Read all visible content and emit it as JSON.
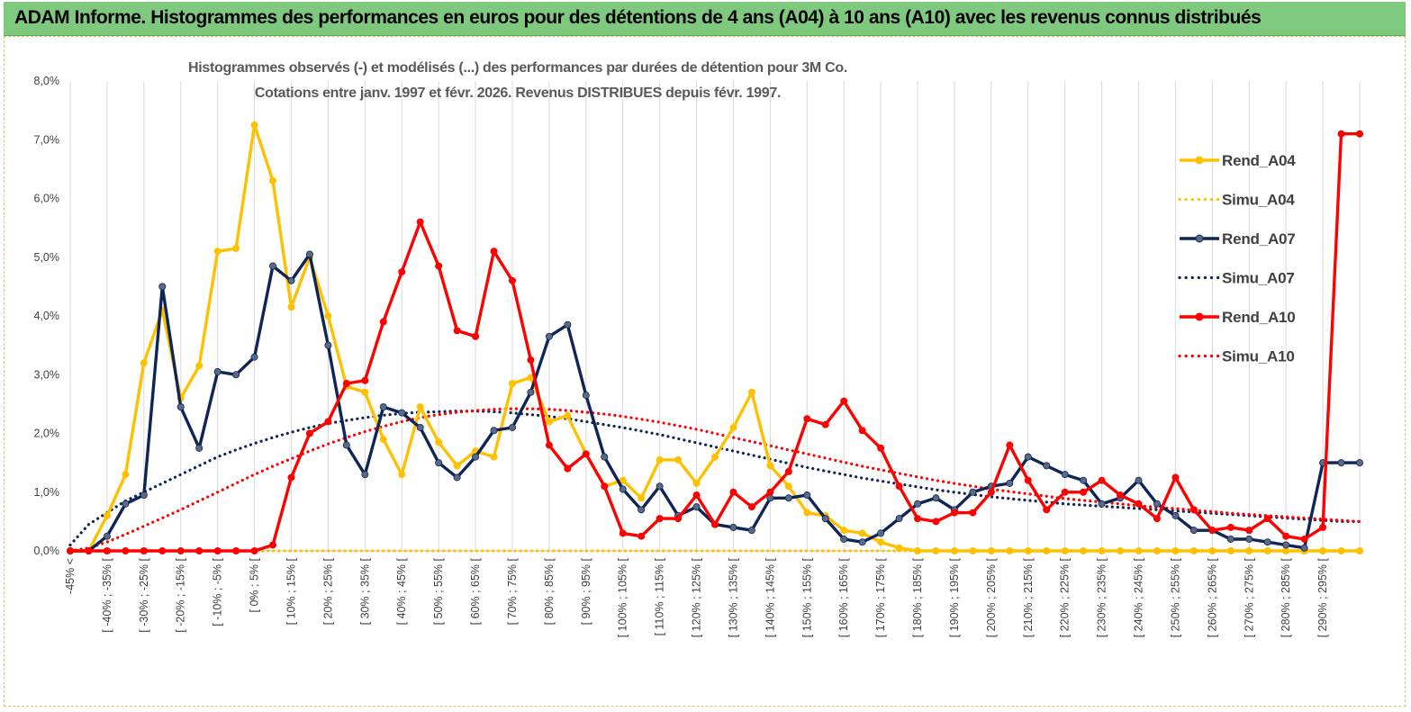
{
  "banner": {
    "title": "ADAM Informe. Histogrammes des performances en euros pour des détentions de 4 ans (A04) à 10 ans (A10) avec les revenus connus distribués"
  },
  "chart_data": {
    "type": "line",
    "title_lines": [
      "Histogrammes observés (-) et modélisés (...) des performances par durées de détention pour 3M Co.",
      "Cotations entre janv. 1997 et févr. 2026. Revenus DISTRIBUES depuis févr. 1997."
    ],
    "xlabel": "",
    "ylabel": "",
    "ylim": [
      0,
      8
    ],
    "y_ticks": [
      "0,0%",
      "1,0%",
      "2,0%",
      "3,0%",
      "4,0%",
      "5,0%",
      "6,0%",
      "7,0%",
      "8,0%"
    ],
    "y_unit": "%",
    "grid": "vertical",
    "legend_position": "right",
    "x_tick_labels": [
      "-45% <",
      "[ -40% ; -35% [",
      "[ -30% ; -25% [",
      "[ -20% ; -15% [",
      "[ -10% ; -5% [",
      "[ 0% ; 5% [",
      "[ 10% ; 15% [",
      "[ 20% ; 25% [",
      "[ 30% ; 35% [",
      "[ 40% ; 45% [",
      "[ 50% ; 55% [",
      "[ 60% ; 65% [",
      "[ 70% ; 75% [",
      "[ 80% ; 85% [",
      "[ 90% ; 95% [",
      "[ 100% ; 105% [",
      "[ 110% ; 115% [",
      "[ 120% ; 125% [",
      "[ 130% ; 135% [",
      "[ 140% ; 145% [",
      "[ 150% ; 155% [",
      "[ 160% ; 165% [",
      "[ 170% ; 175% [",
      "[ 180% ; 185% [",
      "[ 190% ; 195% [",
      "[ 200% ; 205% [",
      "[ 210% ; 215% [",
      "[ 220% ; 225% [",
      "[ 230% ; 235% [",
      "[ 240% ; 245% [",
      "[ 250% ; 255% [",
      "[ 260% ; 265% [",
      "[ 270% ; 275% [",
      "[ 280% ; 285% [",
      "[ 290% ; 295% ["
    ],
    "categories_count": 71,
    "series": [
      {
        "name": "Rend_A04",
        "color": "#ffc000",
        "style": "solid-markers",
        "values": [
          0,
          0,
          0.6,
          1.3,
          3.2,
          4.1,
          2.6,
          3.15,
          5.1,
          5.15,
          7.25,
          6.3,
          4.15,
          5.0,
          4.0,
          2.8,
          2.7,
          1.9,
          1.3,
          2.45,
          1.85,
          1.45,
          1.7,
          1.6,
          2.85,
          2.95,
          2.2,
          2.3,
          1.65,
          1.1,
          1.2,
          0.9,
          1.55,
          1.55,
          1.15,
          1.6,
          2.1,
          2.7,
          1.45,
          1.1,
          0.65,
          0.6,
          0.35,
          0.3,
          0.15,
          0.05,
          0,
          0,
          0,
          0,
          0,
          0,
          0,
          0,
          0,
          0,
          0,
          0,
          0,
          0,
          0,
          0,
          0,
          0,
          0,
          0,
          0,
          0,
          0,
          0,
          0
        ]
      },
      {
        "name": "Simu_A04",
        "color": "#ffc000",
        "style": "dotted",
        "values": [
          0,
          0,
          0,
          0,
          0,
          0,
          0,
          0,
          0,
          0,
          0,
          0,
          0,
          0,
          0,
          0,
          0,
          0,
          0,
          0,
          0,
          0,
          0,
          0,
          0,
          0,
          0,
          0,
          0,
          0,
          0,
          0,
          0,
          0,
          0,
          0,
          0,
          0,
          0,
          0,
          0,
          0,
          0,
          0,
          0,
          0,
          0,
          0,
          0,
          0,
          0,
          0,
          0,
          0,
          0,
          0,
          0,
          0,
          0,
          0,
          0,
          0,
          0,
          0,
          0,
          0,
          0,
          0,
          0,
          0,
          0
        ]
      },
      {
        "name": "Rend_A07",
        "color": "#0f2557",
        "style": "solid-markers",
        "values": [
          0,
          0,
          0.25,
          0.8,
          0.95,
          4.5,
          2.45,
          1.75,
          3.05,
          3.0,
          3.3,
          4.85,
          4.6,
          5.05,
          3.5,
          1.8,
          1.3,
          2.45,
          2.35,
          2.1,
          1.5,
          1.25,
          1.6,
          2.05,
          2.1,
          2.7,
          3.65,
          3.85,
          2.65,
          1.6,
          1.05,
          0.7,
          1.1,
          0.6,
          0.75,
          0.45,
          0.4,
          0.35,
          0.9,
          0.9,
          0.95,
          0.55,
          0.2,
          0.15,
          0.3,
          0.55,
          0.8,
          0.9,
          0.7,
          1.0,
          1.1,
          1.15,
          1.6,
          1.45,
          1.3,
          1.2,
          0.8,
          0.9,
          1.2,
          0.8,
          0.6,
          0.35,
          0.35,
          0.2,
          0.2,
          0.15,
          0.1,
          0.05,
          1.5,
          1.5,
          1.5
        ]
      },
      {
        "name": "Simu_A07",
        "color": "#0f2557",
        "style": "dotted",
        "values": [
          0.1,
          0.45,
          0.65,
          0.85,
          1.0,
          1.15,
          1.3,
          1.45,
          1.6,
          1.72,
          1.83,
          1.93,
          2.02,
          2.1,
          2.17,
          2.22,
          2.27,
          2.31,
          2.34,
          2.36,
          2.37,
          2.38,
          2.38,
          2.37,
          2.35,
          2.32,
          2.29,
          2.25,
          2.2,
          2.15,
          2.1,
          2.04,
          1.98,
          1.91,
          1.84,
          1.77,
          1.7,
          1.63,
          1.56,
          1.49,
          1.42,
          1.36,
          1.3,
          1.24,
          1.19,
          1.14,
          1.09,
          1.04,
          1.0,
          0.96,
          0.92,
          0.89,
          0.86,
          0.83,
          0.8,
          0.78,
          0.76,
          0.74,
          0.72,
          0.7,
          0.68,
          0.66,
          0.64,
          0.62,
          0.6,
          0.58,
          0.56,
          0.54,
          0.52,
          0.5,
          0.5
        ]
      },
      {
        "name": "Rend_A10",
        "color": "#ff0000",
        "style": "solid-markers",
        "values": [
          0,
          0,
          0,
          0,
          0,
          0,
          0,
          0,
          0,
          0,
          0,
          0.1,
          1.25,
          2.0,
          2.2,
          2.85,
          2.9,
          3.9,
          4.75,
          5.6,
          4.85,
          3.75,
          3.65,
          5.1,
          4.6,
          3.25,
          1.8,
          1.4,
          1.65,
          1.1,
          0.3,
          0.25,
          0.55,
          0.55,
          0.95,
          0.45,
          1.0,
          0.75,
          1.0,
          1.35,
          2.25,
          2.15,
          2.55,
          2.05,
          1.75,
          1.1,
          0.55,
          0.5,
          0.65,
          0.65,
          1.0,
          1.8,
          1.2,
          0.7,
          1.0,
          1.0,
          1.2,
          0.95,
          0.8,
          0.55,
          1.25,
          0.7,
          0.35,
          0.4,
          0.35,
          0.55,
          0.25,
          0.2,
          0.4,
          7.1,
          7.1
        ]
      },
      {
        "name": "Simu_A10",
        "color": "#ff0000",
        "style": "dotted",
        "values": [
          0,
          0.05,
          0.15,
          0.28,
          0.42,
          0.56,
          0.7,
          0.85,
          1.0,
          1.15,
          1.3,
          1.44,
          1.57,
          1.7,
          1.82,
          1.93,
          2.03,
          2.12,
          2.2,
          2.27,
          2.32,
          2.36,
          2.39,
          2.41,
          2.42,
          2.42,
          2.41,
          2.39,
          2.36,
          2.33,
          2.29,
          2.24,
          2.19,
          2.13,
          2.07,
          2.0,
          1.93,
          1.86,
          1.79,
          1.72,
          1.65,
          1.58,
          1.51,
          1.44,
          1.38,
          1.32,
          1.26,
          1.2,
          1.15,
          1.1,
          1.05,
          1.01,
          0.97,
          0.93,
          0.89,
          0.86,
          0.83,
          0.8,
          0.77,
          0.74,
          0.72,
          0.69,
          0.67,
          0.64,
          0.62,
          0.6,
          0.58,
          0.56,
          0.54,
          0.52,
          0.5
        ]
      }
    ]
  }
}
